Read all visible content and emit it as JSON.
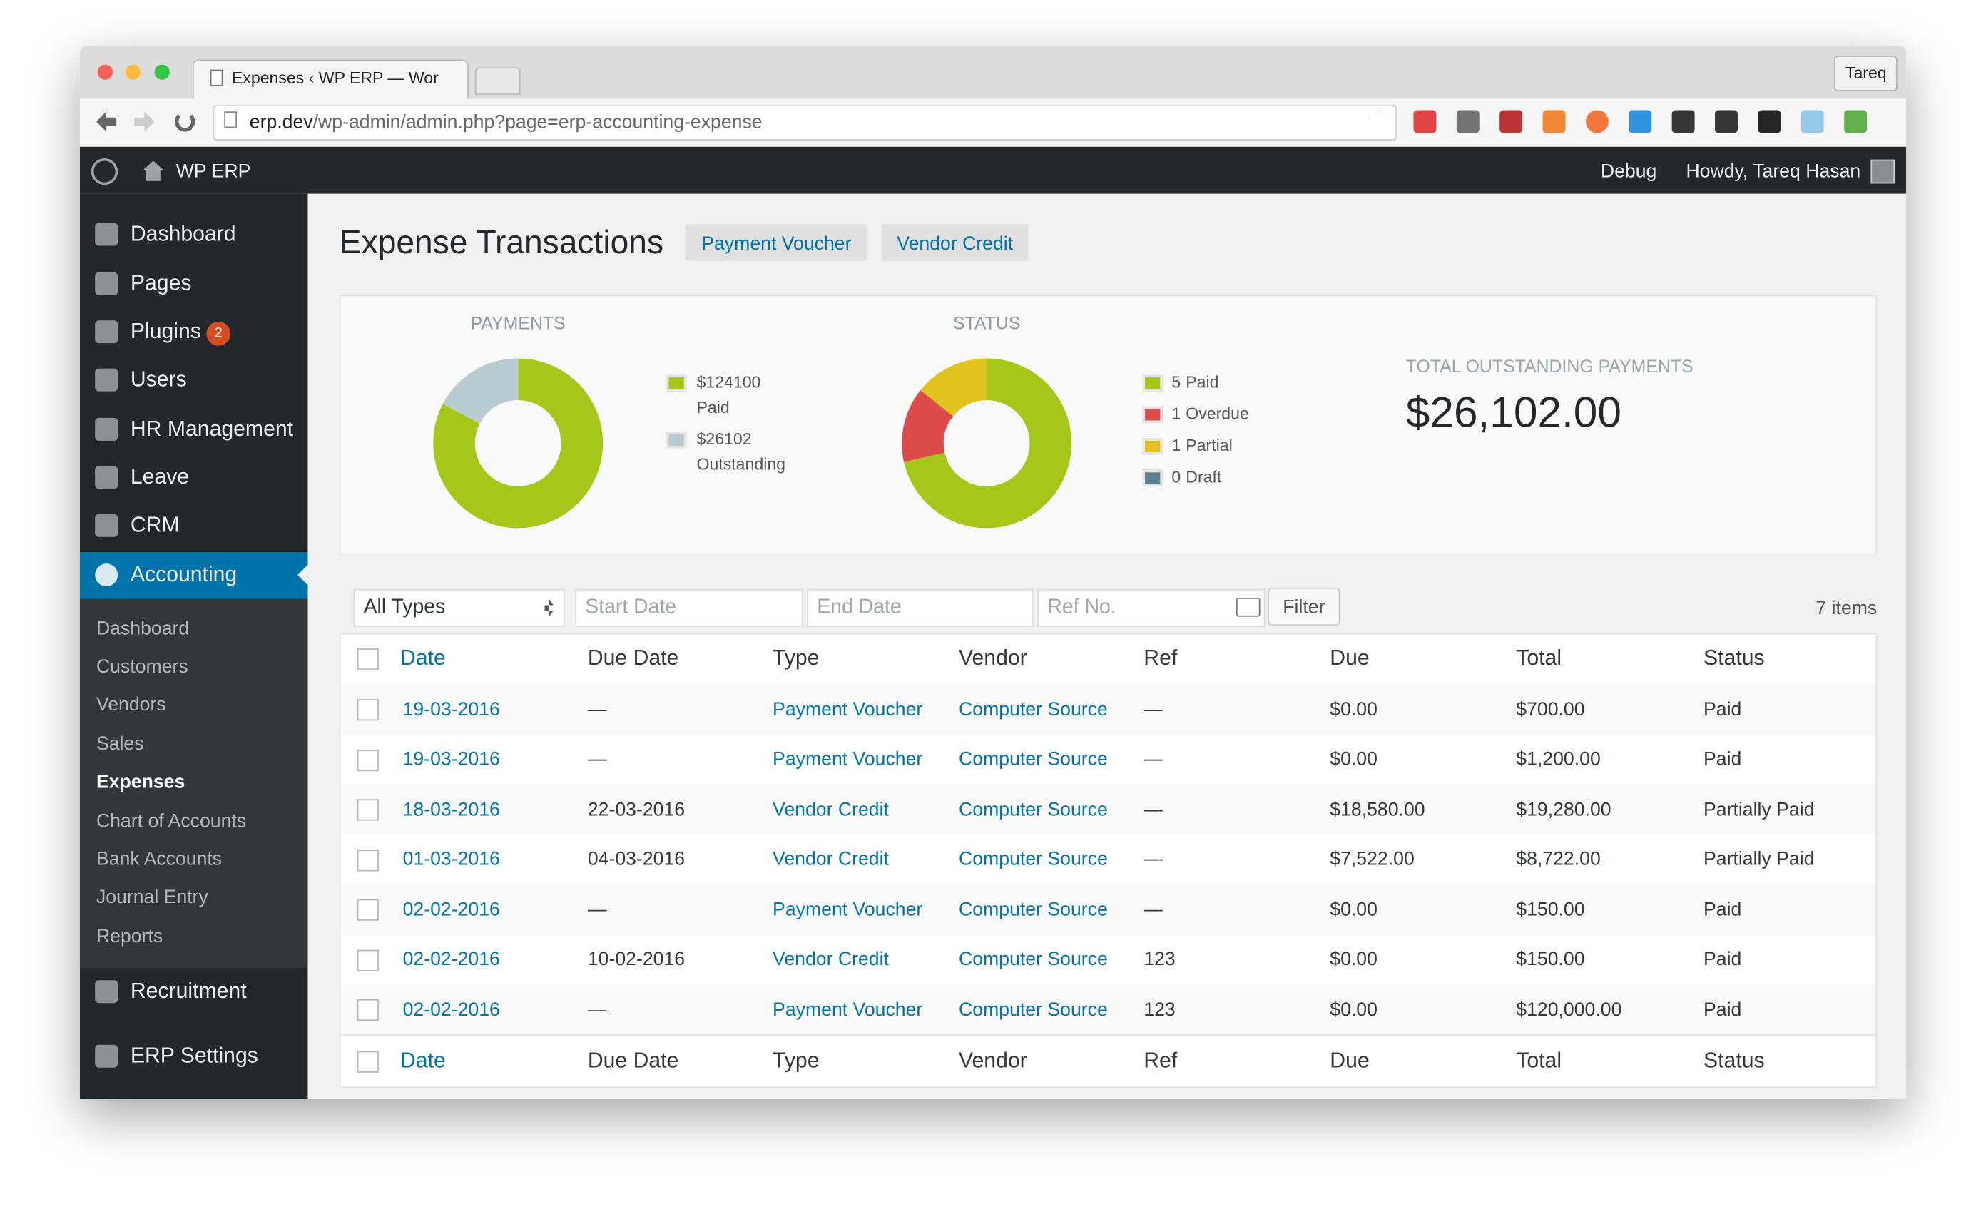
{
  "browser": {
    "tab_title": "Expenses ‹ WP ERP — Wor",
    "profile": "Tareq",
    "url_host": "erp.dev",
    "url_path": "/wp-admin/admin.php?page=erp-accounting-expense"
  },
  "admin_bar": {
    "site": "WP ERP",
    "debug": "Debug",
    "greeting": "Howdy, Tareq Hasan"
  },
  "sidebar": {
    "menu": [
      "Dashboard",
      "Pages",
      "Plugins",
      "Users",
      "HR Management",
      "Leave",
      "CRM",
      "Accounting"
    ],
    "plugins_badge": 2,
    "submenu": [
      "Dashboard",
      "Customers",
      "Vendors",
      "Sales",
      "Expenses",
      "Chart of Accounts",
      "Bank Accounts",
      "Journal Entry",
      "Reports"
    ],
    "menu_bottom": [
      "Recruitment",
      "ERP Settings"
    ]
  },
  "header": {
    "title": "Expense Transactions",
    "buttons": [
      "Payment Voucher",
      "Vendor Credit"
    ]
  },
  "summary": {
    "payments": {
      "title": "PAYMENTS",
      "slices": [
        {
          "name": "Paid",
          "value": 124100,
          "value_label": "$124100",
          "color": "#a5c71a"
        },
        {
          "name": "Outstanding",
          "value": 26102,
          "value_label": "$26102",
          "color": "#b8cad2"
        }
      ]
    },
    "status": {
      "title": "STATUS",
      "slices": [
        {
          "name": "Paid",
          "value": 5,
          "color": "#a5c71a"
        },
        {
          "name": "Overdue",
          "value": 1,
          "color": "#dd4b4b"
        },
        {
          "name": "Partial",
          "value": 1,
          "color": "#e2c21f"
        },
        {
          "name": "Draft",
          "value": 0,
          "color": "#5e8093"
        }
      ]
    },
    "outstanding": {
      "title": "TOTAL OUTSTANDING PAYMENTS",
      "amount": "$26,102.00"
    }
  },
  "filters": {
    "type": "All Types",
    "start": "Start Date",
    "end": "End Date",
    "ref": "Ref No.",
    "button": "Filter",
    "count": "7 items"
  },
  "table": {
    "columns": [
      "Date",
      "Due Date",
      "Type",
      "Vendor",
      "Ref",
      "Due",
      "Total",
      "Status"
    ],
    "rows": [
      [
        "19-03-2016",
        "—",
        "Payment Voucher",
        "Computer Source",
        "—",
        "$0.00",
        "$700.00",
        "Paid"
      ],
      [
        "19-03-2016",
        "—",
        "Payment Voucher",
        "Computer Source",
        "—",
        "$0.00",
        "$1,200.00",
        "Paid"
      ],
      [
        "18-03-2016",
        "22-03-2016",
        "Vendor Credit",
        "Computer Source",
        "—",
        "$18,580.00",
        "$19,280.00",
        "Partially Paid"
      ],
      [
        "01-03-2016",
        "04-03-2016",
        "Vendor Credit",
        "Computer Source",
        "—",
        "$7,522.00",
        "$8,722.00",
        "Partially Paid"
      ],
      [
        "02-02-2016",
        "—",
        "Payment Voucher",
        "Computer Source",
        "—",
        "$0.00",
        "$150.00",
        "Paid"
      ],
      [
        "02-02-2016",
        "10-02-2016",
        "Vendor Credit",
        "Computer Source",
        "123",
        "$0.00",
        "$150.00",
        "Paid"
      ],
      [
        "02-02-2016",
        "—",
        "Payment Voucher",
        "Computer Source",
        "123",
        "$0.00",
        "$120,000.00",
        "Paid"
      ]
    ]
  }
}
